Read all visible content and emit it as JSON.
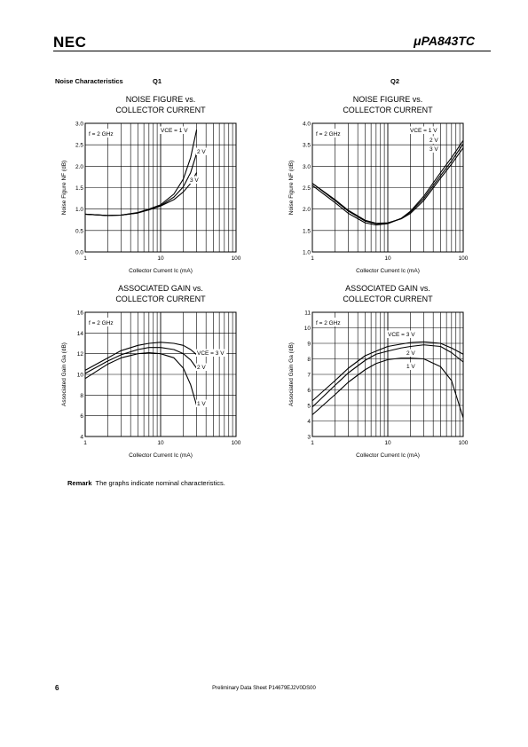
{
  "header": {
    "logo": "NEC",
    "part_number": "μPA843TC"
  },
  "section": {
    "title": "Noise Characteristics",
    "q1_label": "Q1",
    "q2_label": "Q2"
  },
  "chart_data": [
    {
      "type": "line",
      "title_lines": [
        "NOISE FIGURE vs.",
        "COLLECTOR CURRENT"
      ],
      "xlabel": "Collector Current  Ic (mA)",
      "ylabel": "Noise Figure  NF (dB)",
      "xscale": "log",
      "xlim": [
        1,
        100
      ],
      "ylim": [
        0,
        3.0
      ],
      "yticks": [
        "0.0",
        "0.5",
        "1.0",
        "1.5",
        "2.0",
        "2.5",
        "3.0"
      ],
      "xticks": [
        "1",
        "10",
        "100"
      ],
      "condition": "f = 2 GHz",
      "grid": true,
      "series": [
        {
          "name": "VCE = 1 V",
          "x": [
            1,
            2,
            3,
            5,
            7,
            10,
            15,
            20,
            25,
            30
          ],
          "y": [
            0.88,
            0.85,
            0.86,
            0.92,
            1.0,
            1.1,
            1.35,
            1.7,
            2.2,
            2.85
          ]
        },
        {
          "name": "2 V",
          "x": [
            1,
            2,
            3,
            5,
            7,
            10,
            15,
            20,
            25,
            30
          ],
          "y": [
            0.88,
            0.85,
            0.86,
            0.91,
            0.99,
            1.08,
            1.28,
            1.52,
            1.85,
            2.3
          ]
        },
        {
          "name": "3 V",
          "x": [
            1,
            2,
            3,
            5,
            7,
            10,
            15,
            20,
            25,
            30
          ],
          "y": [
            0.88,
            0.85,
            0.86,
            0.91,
            0.98,
            1.07,
            1.22,
            1.4,
            1.6,
            1.85
          ]
        }
      ]
    },
    {
      "type": "line",
      "title_lines": [
        "NOISE FIGURE vs.",
        "COLLECTOR CURRENT"
      ],
      "xlabel": "Collector Current  Ic (mA)",
      "ylabel": "Noise Figure  NF (dB)",
      "xscale": "log",
      "xlim": [
        1,
        100
      ],
      "ylim": [
        1.0,
        4.0
      ],
      "yticks": [
        "1.0",
        "1.5",
        "2.0",
        "2.5",
        "3.0",
        "3.5",
        "4.0"
      ],
      "xticks": [
        "1",
        "10",
        "100"
      ],
      "condition": "f = 2 GHz",
      "grid": true,
      "series": [
        {
          "name": "VCE = 1 V",
          "x": [
            1,
            2,
            3,
            5,
            7,
            10,
            15,
            20,
            30,
            50,
            70,
            100
          ],
          "y": [
            2.55,
            2.15,
            1.9,
            1.68,
            1.63,
            1.66,
            1.78,
            1.95,
            2.3,
            2.85,
            3.2,
            3.6
          ]
        },
        {
          "name": "2 V",
          "x": [
            1,
            2,
            3,
            5,
            7,
            10,
            15,
            20,
            30,
            50,
            70,
            100
          ],
          "y": [
            2.6,
            2.2,
            1.95,
            1.72,
            1.66,
            1.67,
            1.78,
            1.93,
            2.25,
            2.78,
            3.12,
            3.52
          ]
        },
        {
          "name": "3 V",
          "x": [
            1,
            2,
            3,
            5,
            7,
            10,
            15,
            20,
            30,
            50,
            70,
            100
          ],
          "y": [
            2.6,
            2.22,
            1.97,
            1.74,
            1.67,
            1.68,
            1.77,
            1.9,
            2.2,
            2.72,
            3.05,
            3.43
          ]
        }
      ]
    },
    {
      "type": "line",
      "title_lines": [
        "ASSOCIATED GAIN vs.",
        "COLLECTOR CURRENT"
      ],
      "xlabel": "Collector Current  Ic (mA)",
      "ylabel": "Associated Gain  Ga (dB)",
      "xscale": "log",
      "xlim": [
        1,
        100
      ],
      "ylim": [
        4,
        16
      ],
      "yticks": [
        "4",
        "6",
        "8",
        "10",
        "12",
        "14",
        "16"
      ],
      "xticks": [
        "1",
        "10",
        "100"
      ],
      "condition": "f = 2 GHz",
      "grid": true,
      "series": [
        {
          "name": "VCE = 3 V",
          "x": [
            1,
            2,
            3,
            5,
            7,
            10,
            15,
            20,
            25,
            30
          ],
          "y": [
            10.4,
            11.6,
            12.3,
            12.8,
            13.0,
            13.1,
            13.0,
            12.8,
            12.4,
            11.9
          ]
        },
        {
          "name": "2 V",
          "x": [
            1,
            2,
            3,
            5,
            7,
            10,
            15,
            20,
            25,
            30
          ],
          "y": [
            10.1,
            11.3,
            11.9,
            12.4,
            12.6,
            12.6,
            12.4,
            12.0,
            11.4,
            10.6
          ]
        },
        {
          "name": "1 V",
          "x": [
            1,
            2,
            3,
            5,
            7,
            10,
            15,
            20,
            25,
            30
          ],
          "y": [
            9.6,
            11.0,
            11.6,
            12.0,
            12.1,
            12.0,
            11.6,
            10.6,
            9.0,
            7.0
          ]
        }
      ]
    },
    {
      "type": "line",
      "title_lines": [
        "ASSOCIATED GAIN vs.",
        "COLLECTOR CURRENT"
      ],
      "xlabel": "Collector Current  Ic (mA)",
      "ylabel": "Associated Gain  Ga (dB)",
      "xscale": "log",
      "xlim": [
        1,
        100
      ],
      "ylim": [
        3,
        11
      ],
      "yticks": [
        "3",
        "4",
        "5",
        "6",
        "7",
        "8",
        "9",
        "10",
        "11"
      ],
      "xticks": [
        "1",
        "10",
        "100"
      ],
      "condition": "f = 2 GHz",
      "grid": true,
      "series": [
        {
          "name": "VCE = 3 V",
          "x": [
            1,
            2,
            3,
            5,
            7,
            10,
            15,
            20,
            30,
            50,
            70,
            100
          ],
          "y": [
            5.3,
            6.6,
            7.4,
            8.2,
            8.5,
            8.8,
            8.95,
            9.05,
            9.1,
            9.0,
            8.7,
            8.3
          ]
        },
        {
          "name": "2 V",
          "x": [
            1,
            2,
            3,
            5,
            7,
            10,
            15,
            20,
            30,
            50,
            70,
            100
          ],
          "y": [
            4.9,
            6.3,
            7.1,
            7.9,
            8.3,
            8.5,
            8.7,
            8.8,
            8.9,
            8.8,
            8.4,
            7.8
          ]
        },
        {
          "name": "1 V",
          "x": [
            1,
            2,
            3,
            5,
            7,
            10,
            15,
            20,
            30,
            50,
            70,
            100
          ],
          "y": [
            4.4,
            5.7,
            6.5,
            7.3,
            7.7,
            7.95,
            8.05,
            8.05,
            8.0,
            7.5,
            6.6,
            4.2
          ]
        }
      ]
    }
  ],
  "remark": {
    "label": "Remark",
    "text": "The graphs indicate nominal characteristics."
  },
  "footer": {
    "page_number": "6",
    "text": "Preliminary Data Sheet  P14679EJ2V0DS00"
  }
}
